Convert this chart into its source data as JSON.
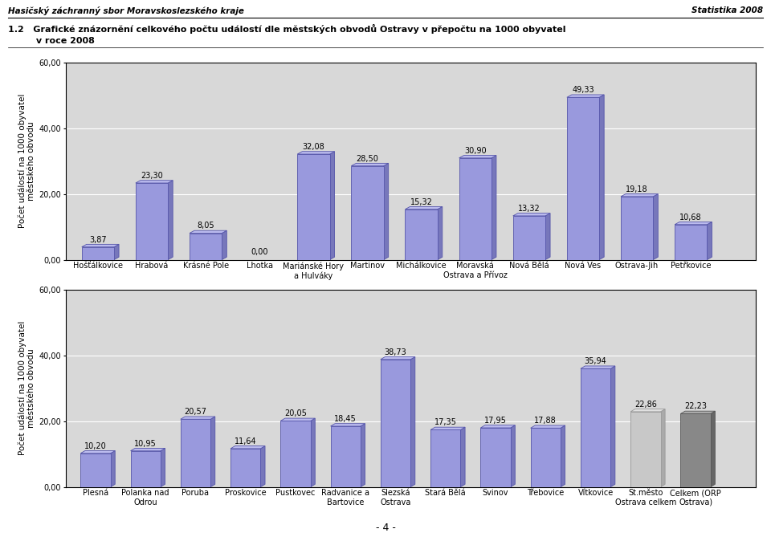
{
  "header_left": "Hasičský záchranný sbor Moravskoslezského kraje",
  "header_right": "Statistika 2008",
  "title_line1": "1.2   Grafické znázornění celkového počtu událostí dle městských obvodů Ostravy v přepočtu na 1000 obyvatel",
  "title_line2": "         v roce 2008",
  "ylabel": "Počet událostí na 1000 obyvatel\nměstského obvodu",
  "chart1": {
    "categories": [
      "Hošťálkovice",
      "Hrabová",
      "Krásné Pole",
      "Lhotka",
      "Mariánské Hory\na Hulváky",
      "Martinov",
      "Michálkovice",
      "Moravská\nOstrava a Přívoz",
      "Nová Bělá",
      "Nová Ves",
      "Ostrava-Jih",
      "Petřkovice"
    ],
    "values": [
      3.87,
      23.3,
      8.05,
      0.0,
      32.08,
      28.5,
      15.32,
      30.9,
      13.32,
      49.33,
      19.18,
      10.68
    ],
    "bar_face_color": "#9999DD",
    "bar_edge_color": "#5555AA",
    "ylim": [
      0,
      60
    ],
    "yticks": [
      0,
      20,
      40,
      60
    ],
    "ytick_labels": [
      "0,00",
      "20,00",
      "40,00",
      "60,00"
    ]
  },
  "chart2": {
    "categories": [
      "Plesná",
      "Polanka nad\nOdrou",
      "Poruba",
      "Proskovice",
      "Pustkovec",
      "Radvanice a\nBartovice",
      "Slezská\nOstrava",
      "Stará Bělá",
      "Svinov",
      "Třebovice",
      "Vítkovice",
      "St.město\nOstrava celkem",
      "Celkem (ORP\nOstrava)"
    ],
    "values": [
      10.2,
      10.95,
      20.57,
      11.64,
      20.05,
      18.45,
      38.73,
      17.35,
      17.95,
      17.88,
      35.94,
      22.86,
      22.23
    ],
    "bar_face_colors": [
      "#9999DD",
      "#9999DD",
      "#9999DD",
      "#9999DD",
      "#9999DD",
      "#9999DD",
      "#9999DD",
      "#9999DD",
      "#9999DD",
      "#9999DD",
      "#9999DD",
      "#C8C8C8",
      "#888888"
    ],
    "bar_edge_colors": [
      "#5555AA",
      "#5555AA",
      "#5555AA",
      "#5555AA",
      "#5555AA",
      "#5555AA",
      "#5555AA",
      "#5555AA",
      "#5555AA",
      "#5555AA",
      "#5555AA",
      "#999999",
      "#555555"
    ],
    "ylim": [
      0,
      60
    ],
    "yticks": [
      0,
      20,
      40,
      60
    ],
    "ytick_labels": [
      "0,00",
      "20,00",
      "40,00",
      "60,00"
    ]
  },
  "bg_color": "#FFFFFF",
  "plot_bg_color": "#D8D8D8",
  "grid_color": "#FFFFFF",
  "bar_label_fontsize": 7,
  "tick_fontsize": 7,
  "axis_label_fontsize": 7.5,
  "page_number": "- 4 -"
}
